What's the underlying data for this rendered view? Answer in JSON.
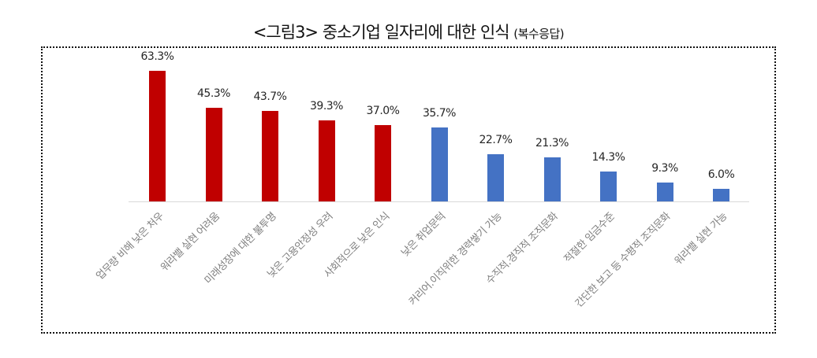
{
  "title": {
    "main": "<그림3> 중소기업 일자리에 대한 인식",
    "sub": "(복수응답)"
  },
  "colors": {
    "highlight": "#C00000",
    "normal": "#4472C4",
    "axis": "#D9D9D9",
    "label": "#7F7F7F",
    "value": "#262626"
  },
  "chart_data": {
    "type": "bar",
    "title": "<그림3> 중소기업 일자리에 대한 인식 (복수응답)",
    "xlabel": "",
    "ylabel": "",
    "ylim": [
      0,
      70
    ],
    "grid": false,
    "legend": null,
    "categories": [
      "업무량 비해 낮은 처우",
      "워라밸 실현 어려움",
      "미래성장에 대한 불투명",
      "낮은 고용안정성 우려",
      "사회적으로 낮은 인식",
      "낮은 취업문턱",
      "커리어.이직위한 경력쌓기 가능",
      "수직적.경직적 조직문화",
      "적절한 임금수준",
      "간단한 보고 등 수평적 조직문화",
      "워라밸 실현 가능"
    ],
    "values": [
      63.3,
      45.3,
      43.7,
      39.3,
      37.0,
      35.7,
      22.7,
      21.3,
      14.3,
      9.3,
      6.0
    ],
    "value_labels": [
      "63.3%",
      "45.3%",
      "43.7%",
      "39.3%",
      "37.0%",
      "35.7%",
      "22.7%",
      "21.3%",
      "14.3%",
      "9.3%",
      "6.0%"
    ],
    "bar_colors": [
      "#C00000",
      "#C00000",
      "#C00000",
      "#C00000",
      "#C00000",
      "#4472C4",
      "#4472C4",
      "#4472C4",
      "#4472C4",
      "#4472C4",
      "#4472C4"
    ],
    "unit": "%"
  }
}
